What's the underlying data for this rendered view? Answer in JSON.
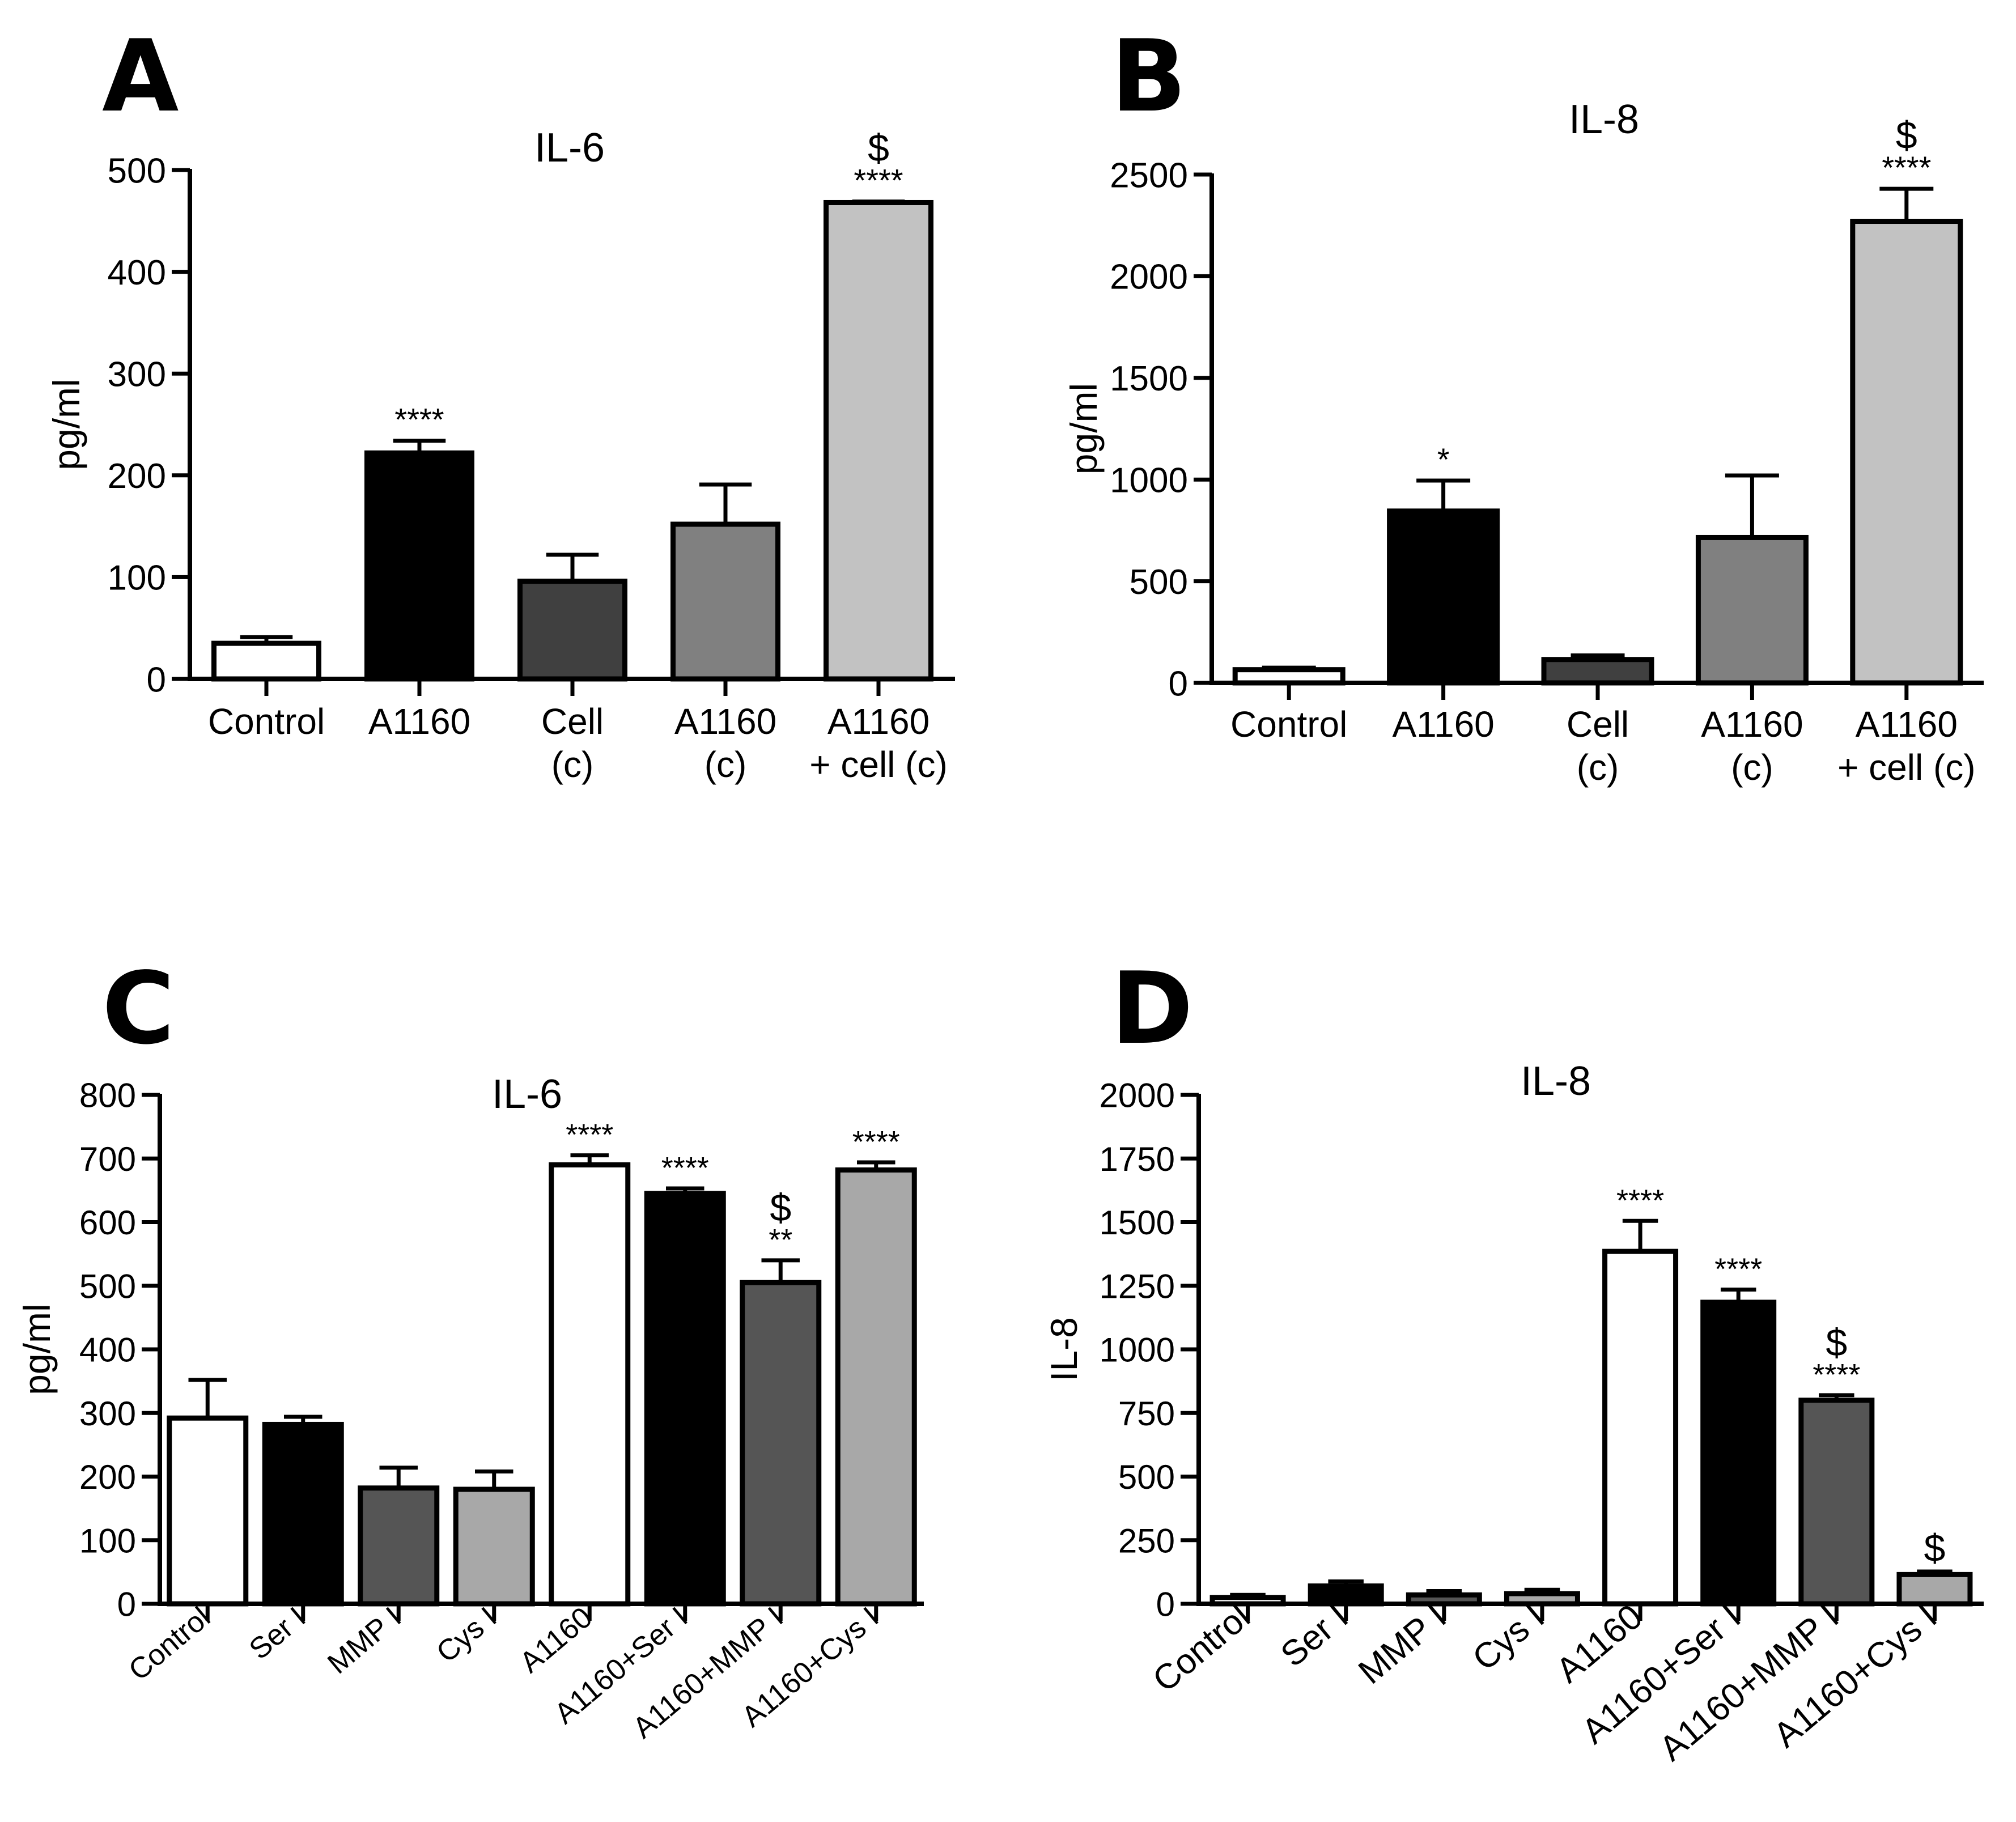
{
  "chart_data": [
    {
      "panel": "A",
      "type": "bar",
      "title": "IL-6",
      "ylabel": "pg/ml",
      "xlabel": "",
      "ylim": [
        0,
        500
      ],
      "yticks": [
        0,
        100,
        200,
        300,
        400,
        500
      ],
      "categories": [
        "Control",
        "A1160",
        "Cell\n(c)",
        "A1160\n(c)",
        "A1160\n+ cell (c)"
      ],
      "values": [
        35,
        222,
        96,
        152,
        468
      ],
      "errors": [
        6,
        12,
        26,
        39,
        1
      ],
      "colors": [
        "#ffffff",
        "#000000",
        "#404040",
        "#808080",
        "#c2c2c2"
      ],
      "annotations": [
        "",
        "****",
        "",
        "",
        "$\n****"
      ],
      "label_style": "horizontal"
    },
    {
      "panel": "B",
      "type": "bar",
      "title": "IL-8",
      "ylabel": "pg/ml",
      "xlabel": "",
      "ylim": [
        0,
        2500
      ],
      "yticks": [
        0,
        500,
        1000,
        1500,
        2000,
        2500
      ],
      "categories": [
        "Control",
        "A1160",
        "Cell\n(c)",
        "A1160\n(c)",
        "A1160\n+ cell (c)"
      ],
      "values": [
        65,
        845,
        115,
        715,
        2270
      ],
      "errors": [
        10,
        150,
        20,
        305,
        160
      ],
      "colors": [
        "#ffffff",
        "#000000",
        "#404040",
        "#808080",
        "#c2c2c2"
      ],
      "annotations": [
        "",
        "*",
        "",
        "",
        "$\n****"
      ],
      "label_style": "horizontal"
    },
    {
      "panel": "C",
      "type": "bar",
      "title": "IL-6",
      "ylabel": "pg/ml",
      "xlabel": "",
      "ylim": [
        0,
        800
      ],
      "yticks": [
        0,
        100,
        200,
        300,
        400,
        500,
        600,
        700,
        800
      ],
      "categories": [
        "Control",
        "Ser I",
        "MMP I",
        "Cys I",
        "A1160",
        "A1160+Ser I",
        "A1160+MMP I",
        "A1160+Cys I"
      ],
      "values": [
        292,
        282,
        182,
        180,
        690,
        645,
        505,
        682
      ],
      "errors": [
        60,
        12,
        32,
        28,
        15,
        8,
        35,
        12
      ],
      "colors": [
        "#ffffff",
        "#000000",
        "#555555",
        "#a8a8a8",
        "#ffffff",
        "#000000",
        "#555555",
        "#a8a8a8"
      ],
      "annotations": [
        "",
        "",
        "",
        "",
        "****",
        "****",
        "$\n**",
        "****"
      ],
      "label_style": "rotated"
    },
    {
      "panel": "D",
      "type": "bar",
      "title": "IL-8",
      "ylabel": "IL-8",
      "xlabel": "",
      "ylim": [
        0,
        2000
      ],
      "yticks": [
        0,
        250,
        500,
        750,
        1000,
        1250,
        1500,
        1750,
        2000
      ],
      "categories": [
        "Control",
        "Ser I",
        "MMP I",
        "Cys I",
        "A1160",
        "A1160+Ser I",
        "A1160+MMP I",
        "A1160+Cys I"
      ],
      "values": [
        25,
        70,
        35,
        40,
        1385,
        1185,
        800,
        115
      ],
      "errors": [
        10,
        18,
        15,
        15,
        120,
        50,
        20,
        12
      ],
      "colors": [
        "#ffffff",
        "#000000",
        "#555555",
        "#a8a8a8",
        "#ffffff",
        "#000000",
        "#555555",
        "#a8a8a8"
      ],
      "annotations": [
        "",
        "",
        "",
        "",
        "****",
        "****",
        "$\n****",
        "$"
      ],
      "label_style": "rotated"
    }
  ]
}
